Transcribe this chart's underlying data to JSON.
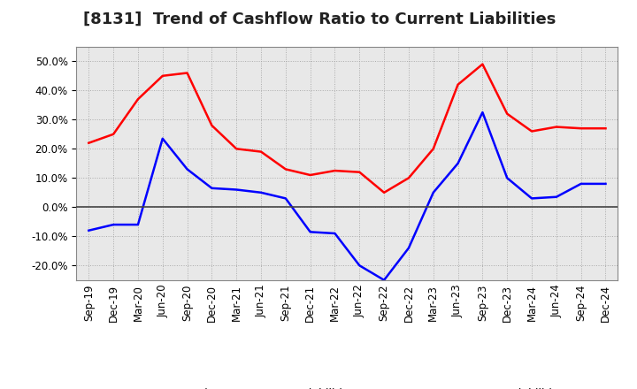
{
  "title": "[8131]  Trend of Cashflow Ratio to Current Liabilities",
  "x_labels": [
    "Sep-19",
    "Dec-19",
    "Mar-20",
    "Jun-20",
    "Sep-20",
    "Dec-20",
    "Mar-21",
    "Jun-21",
    "Sep-21",
    "Dec-21",
    "Mar-22",
    "Jun-22",
    "Sep-22",
    "Dec-22",
    "Mar-23",
    "Jun-23",
    "Sep-23",
    "Dec-23",
    "Mar-24",
    "Jun-24",
    "Sep-24",
    "Dec-24"
  ],
  "operating_cf": [
    22.0,
    25.0,
    37.0,
    45.0,
    46.0,
    28.0,
    20.0,
    19.0,
    13.0,
    11.0,
    12.5,
    12.0,
    5.0,
    10.0,
    20.0,
    42.0,
    49.0,
    32.0,
    26.0,
    27.5,
    27.0,
    27.0
  ],
  "free_cf": [
    -8.0,
    -6.0,
    -6.0,
    23.5,
    13.0,
    6.5,
    6.0,
    5.0,
    3.0,
    -8.5,
    -9.0,
    -20.0,
    -25.0,
    -14.0,
    5.0,
    15.0,
    32.5,
    10.0,
    3.0,
    3.5,
    8.0,
    8.0
  ],
  "ylim": [
    -25,
    55
  ],
  "yticks": [
    -20.0,
    -10.0,
    0.0,
    10.0,
    20.0,
    30.0,
    40.0,
    50.0
  ],
  "operating_color": "red",
  "free_color": "blue",
  "plot_bg_color": "#e8e8e8",
  "fig_bg_color": "#ffffff",
  "grid_color": "#aaaaaa",
  "zero_line_color": "#444444",
  "spine_color": "#888888",
  "legend_operating": "Operating CF to Current Liabilities",
  "legend_free": "Free CF to Current Liabilities",
  "title_fontsize": 13,
  "tick_fontsize": 8.5,
  "legend_fontsize": 9
}
